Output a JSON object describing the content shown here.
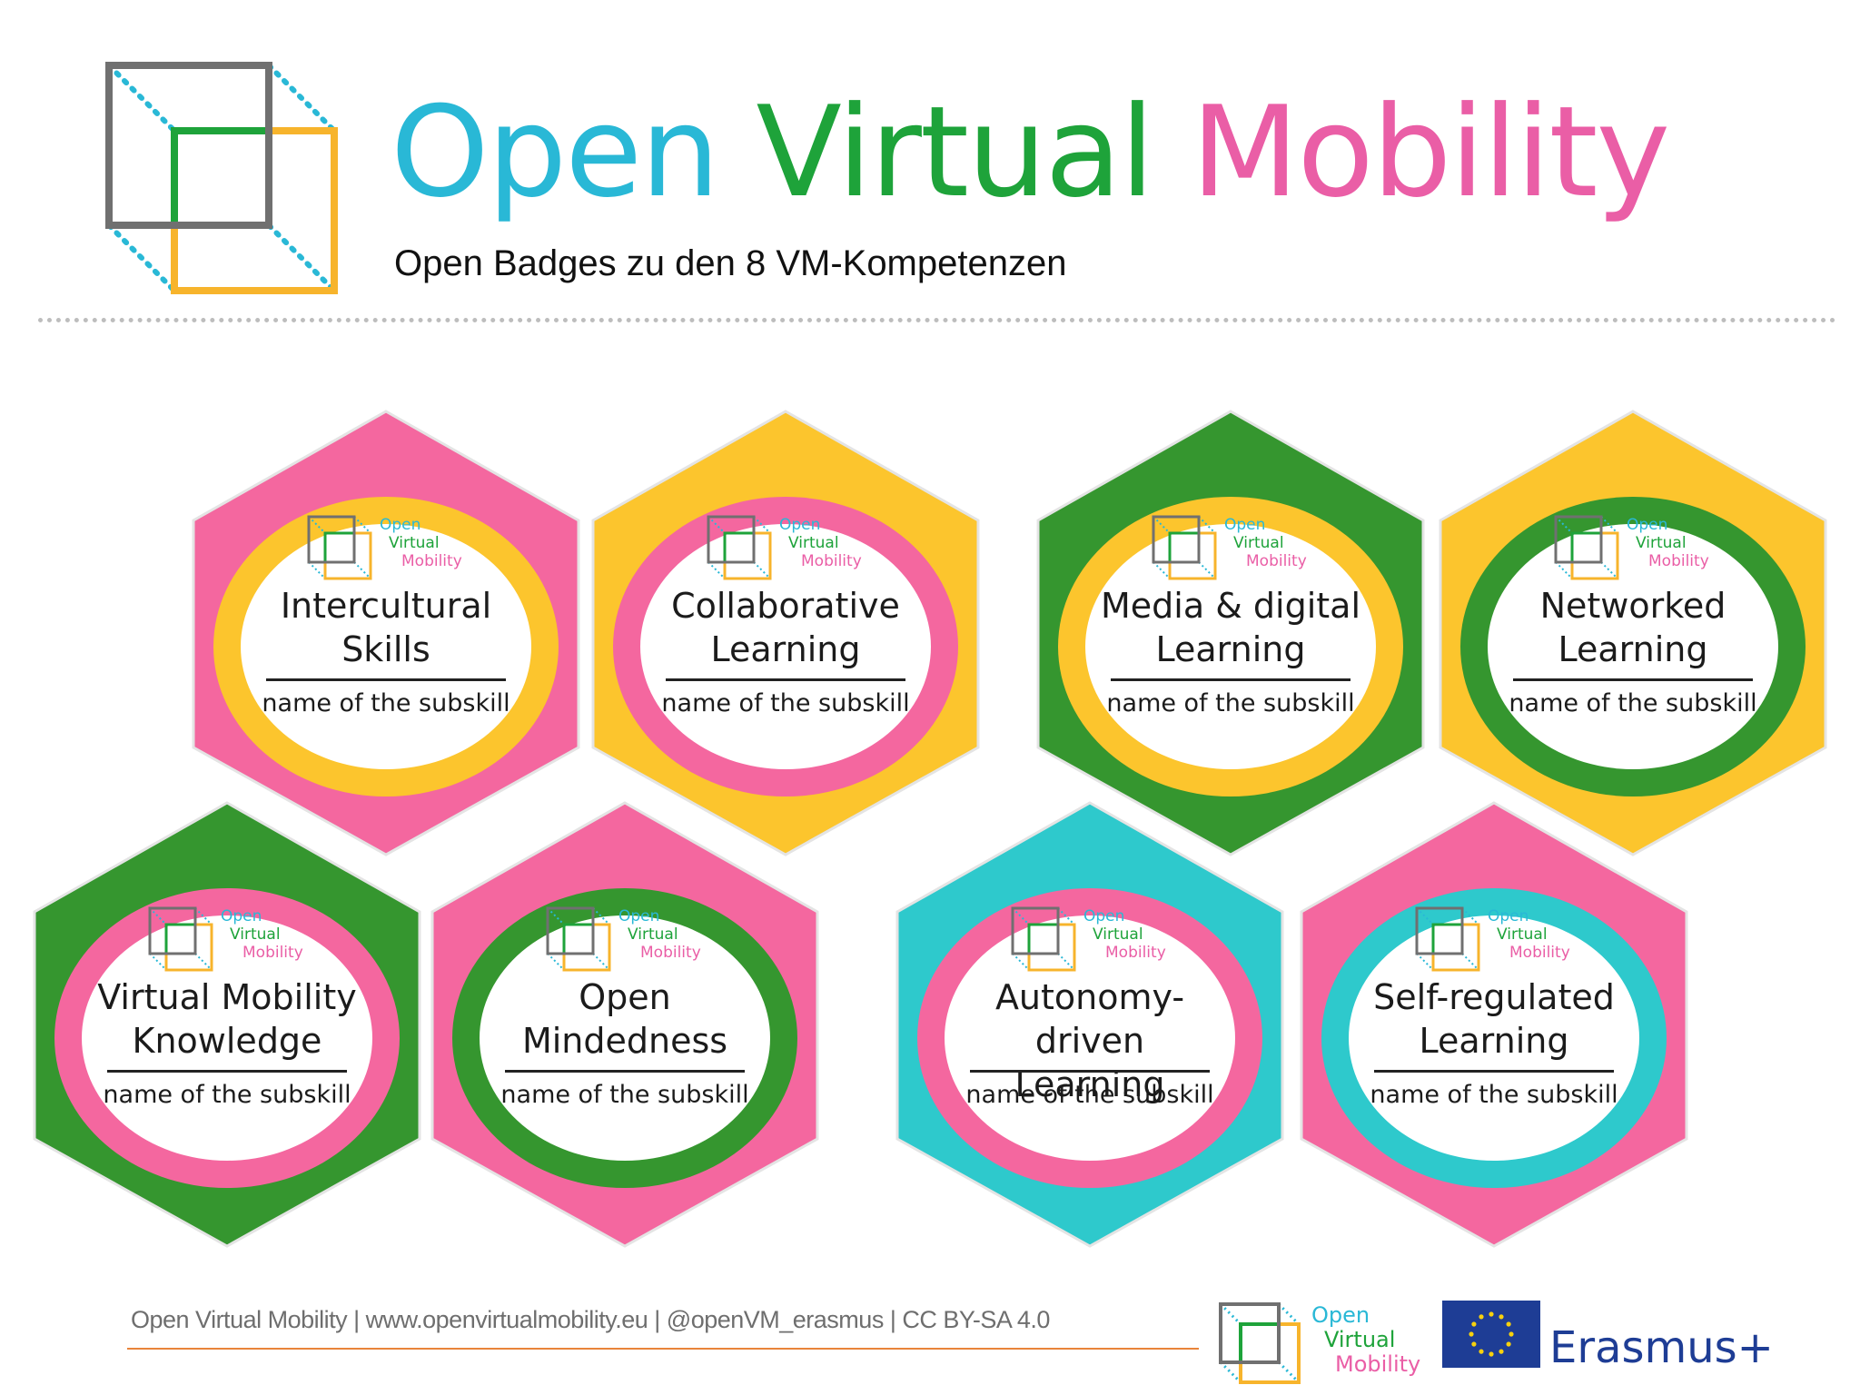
{
  "header": {
    "title_part1": "Open",
    "title_part2": "Virtual",
    "title_part3": "Mobility",
    "subtitle": "Open Badges zu den 8 VM-Kompetenzen"
  },
  "colors": {
    "cyan": "#29b8d6",
    "green": "#1ea33a",
    "pink": "#ea5ea6",
    "gray": "#707070",
    "yellow": "#f7b42c",
    "hex_pink": "#f4679f",
    "hex_yellow": "#fcc52d",
    "hex_green": "#35962f",
    "hex_cyan": "#2ec9cc"
  },
  "mini_logo": {
    "line1": "Open",
    "line2": "Virtual",
    "line3": "Mobility"
  },
  "badges": [
    {
      "name_line1": "Intercultural",
      "name_line2": "Skills",
      "subskill": "name of the subskill",
      "hex_color": "#f4679f",
      "ring_color": "#fcc52d"
    },
    {
      "name_line1": "Collaborative",
      "name_line2": "Learning",
      "subskill": "name of the subskill",
      "hex_color": "#fcc52d",
      "ring_color": "#f4679f"
    },
    {
      "name_line1": "Media & digital",
      "name_line2": "Learning",
      "subskill": "name of the subskill",
      "hex_color": "#35962f",
      "ring_color": "#fcc52d"
    },
    {
      "name_line1": "Networked",
      "name_line2": "Learning",
      "subskill": "name of the subskill",
      "hex_color": "#fcc52d",
      "ring_color": "#35962f"
    },
    {
      "name_line1": "Virtual Mobility",
      "name_line2": "Knowledge",
      "subskill": "name of the subskill",
      "hex_color": "#35962f",
      "ring_color": "#f4679f"
    },
    {
      "name_line1": "Open",
      "name_line2": "Mindedness",
      "subskill": "name of the subskill",
      "hex_color": "#f4679f",
      "ring_color": "#35962f"
    },
    {
      "name_line1": "Autonomy-driven",
      "name_line2": "Learning",
      "subskill": "name of the subskill",
      "hex_color": "#2ec9cc",
      "ring_color": "#f4679f"
    },
    {
      "name_line1": "Self-regulated",
      "name_line2": "Learning",
      "subskill": "name of the subskill",
      "hex_color": "#f4679f",
      "ring_color": "#2ec9cc"
    }
  ],
  "footer": {
    "text": "Open Virtual Mobility | www.openvirtualmobility.eu | @openVM_erasmus | CC BY-SA 4.0",
    "logo_line1": "Open",
    "logo_line2": "Virtual",
    "logo_line3": "Mobility",
    "erasmus": "Erasmus+"
  }
}
